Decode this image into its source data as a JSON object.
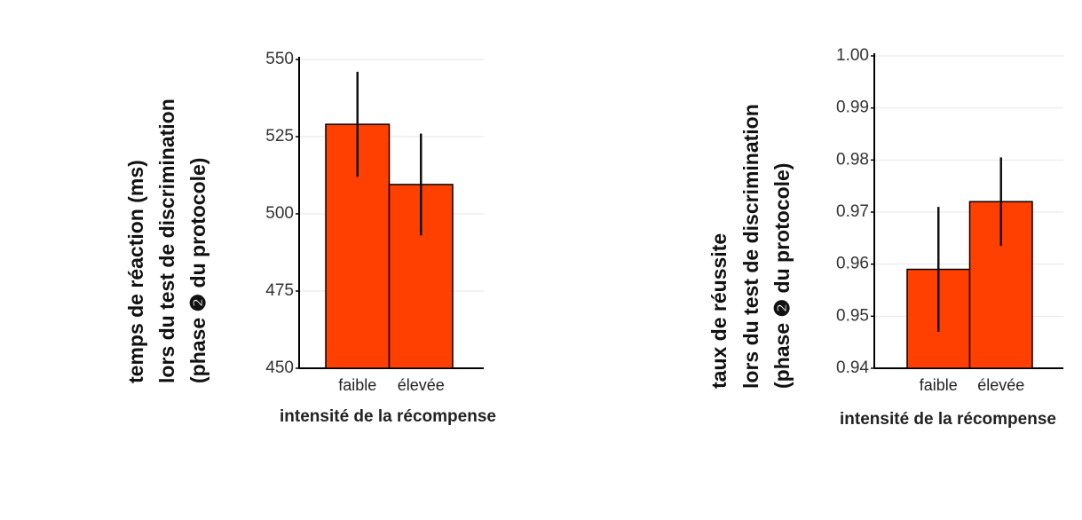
{
  "chart_data": [
    {
      "type": "bar",
      "ylabel": [
        "temps de réaction (ms)",
        "lors du test de discrimination",
        "(phase ❷ du protocole)"
      ],
      "xlabel": "intensité de la récompense",
      "categories": [
        "faible",
        "élevée"
      ],
      "values": [
        529,
        509.5
      ],
      "errors": [
        17,
        16.5
      ],
      "color": "#ff4000",
      "ylim": [
        450,
        550
      ],
      "yticks": [
        450,
        475,
        500,
        525,
        550
      ],
      "grid": true
    },
    {
      "type": "bar",
      "ylabel": [
        "taux de réussite",
        "lors du test de discrimination",
        "(phase ❷ du protocole)"
      ],
      "xlabel": "intensité de la récompense",
      "categories": [
        "faible",
        "élevée"
      ],
      "values": [
        0.959,
        0.972
      ],
      "errors": [
        0.012,
        0.0085
      ],
      "color": "#ff4000",
      "ylim": [
        0.94,
        1.0
      ],
      "yticks": [
        0.94,
        0.95,
        0.96,
        0.97,
        0.98,
        0.99,
        {
          "value": 1,
          "label": "1.00"
        }
      ],
      "grid": true
    }
  ]
}
